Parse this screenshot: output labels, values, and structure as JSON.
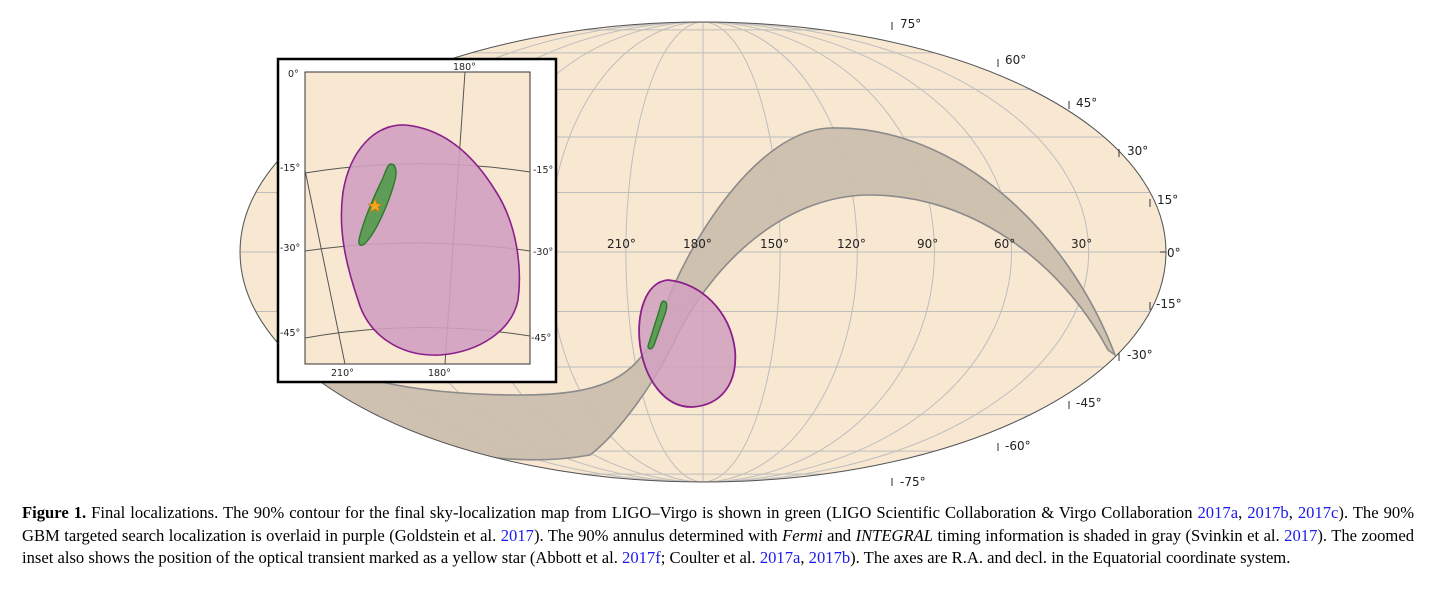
{
  "map": {
    "dec_labels": [
      "75°",
      "60°",
      "45°",
      "30°",
      "15°",
      "0°",
      "-15°",
      "-30°",
      "-45°",
      "-60°",
      "-75°"
    ],
    "ra_labels": [
      "210°",
      "180°",
      "150°",
      "120°",
      "90°",
      "60°",
      "30°"
    ],
    "colors": {
      "sky_fill": "#f8e8d2",
      "grid": "#bdbdbd",
      "annulus_fill": "#cbbfae",
      "annulus_edge": "#8b8b8b",
      "gbm_fill": "#d0a0c0",
      "gbm_edge": "#8b1f8b",
      "ligo_fill": "#5f9c58",
      "ligo_edge": "#2b7a2b",
      "star": "#f5a623"
    }
  },
  "inset": {
    "top_label_0": "0°",
    "top_label_180": "180°",
    "left_dec_labels": [
      "-15°",
      "-30°",
      "-45°"
    ],
    "right_dec_labels": [
      "-15°",
      "-30°",
      "-45°"
    ],
    "bottom_ra_labels": [
      "210°",
      "180°"
    ]
  },
  "caption": {
    "label": "Figure 1.",
    "t1": " Final localizations. The 90% contour for the final sky-localization map from LIGO–Virgo is shown in green (LIGO Scientific Collaboration & Virgo Collaboration ",
    "r1": "2017a",
    "sep1": ", ",
    "r2": "2017b",
    "sep2": ", ",
    "r3": "2017c",
    "t2": "). The 90% GBM targeted search localization is overlaid in purple (Goldstein et al. ",
    "r4": "2017",
    "t3": "). The 90% annulus determined with ",
    "fermi": "Fermi",
    "t4": " and ",
    "integral": "INTEGRAL",
    "t5": " timing information is shaded in gray (Svinkin et al. ",
    "r5": "2017",
    "t6": "). The zoomed inset also shows the position of the optical transient marked as a yellow star (Abbott et al. ",
    "r6": "2017f",
    "t7": "; Coulter et al. ",
    "r7": "2017a",
    "sep3": ", ",
    "r8": "2017b",
    "t8": "). The axes are R.A. and decl. in the Equatorial coordinate system."
  }
}
